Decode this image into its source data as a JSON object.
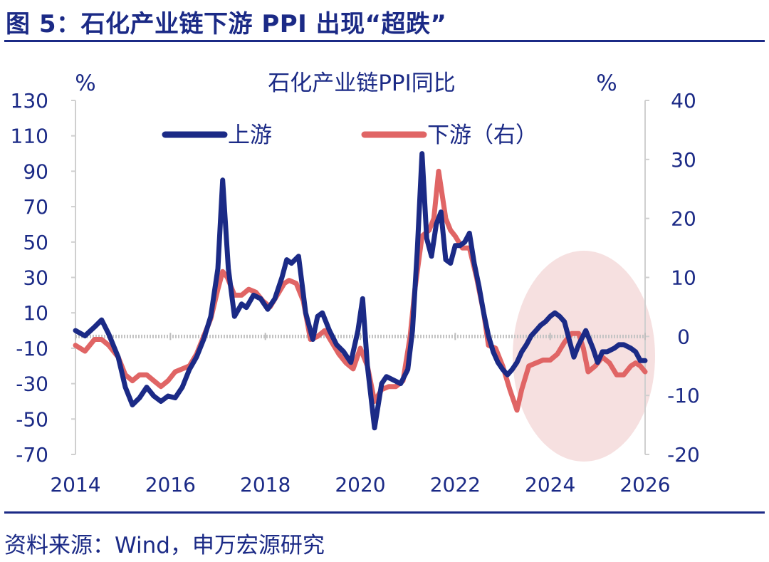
{
  "figure_title": "图 5：石化产业链下游 PPI 出现“超跌”",
  "source": "资料来源：Wind，申万宏源研究",
  "colors": {
    "navy": "#1b2a86",
    "red": "#e06565",
    "highlight": "#f3d5d5"
  },
  "chart_data": {
    "type": "line",
    "title": "石化产业链PPI同比",
    "ylabel_left": "%",
    "ylabel_right": "%",
    "x_ticks": [
      "2014",
      "2016",
      "2018",
      "2020",
      "2022",
      "2024",
      "2026"
    ],
    "xlim": [
      2014.0,
      2026.0
    ],
    "ylim_left": [
      -70,
      130
    ],
    "ylim_right": [
      -20,
      40
    ],
    "yticks_left": [
      "130",
      "110",
      "90",
      "70",
      "50",
      "30",
      "10",
      "-10",
      "-30",
      "-50",
      "-70"
    ],
    "yticks_right": [
      "40",
      "30",
      "20",
      "10",
      "0",
      "-10",
      "-20"
    ],
    "legend_location": "top",
    "series": [
      {
        "name": "上游",
        "axis": "left",
        "color": "#1b2a86",
        "x": [
          2014.0,
          2014.2,
          2014.4,
          2014.55,
          2014.7,
          2014.9,
          2015.05,
          2015.2,
          2015.35,
          2015.5,
          2015.65,
          2015.8,
          2015.95,
          2016.1,
          2016.25,
          2016.4,
          2016.55,
          2016.7,
          2016.85,
          2017.0,
          2017.1,
          2017.22,
          2017.35,
          2017.5,
          2017.6,
          2017.75,
          2017.9,
          2018.05,
          2018.2,
          2018.35,
          2018.45,
          2018.55,
          2018.7,
          2018.85,
          2019.0,
          2019.1,
          2019.2,
          2019.35,
          2019.5,
          2019.65,
          2019.8,
          2019.95,
          2020.05,
          2020.15,
          2020.3,
          2020.45,
          2020.55,
          2020.7,
          2020.85,
          2021.0,
          2021.1,
          2021.2,
          2021.3,
          2021.4,
          2021.5,
          2021.6,
          2021.7,
          2021.8,
          2021.9,
          2022.0,
          2022.1,
          2022.2,
          2022.3,
          2022.4,
          2022.5,
          2022.6,
          2022.7,
          2022.8,
          2022.9,
          2023.0,
          2023.1,
          2023.2,
          2023.3,
          2023.4,
          2023.5,
          2023.6,
          2023.7,
          2023.8,
          2023.9,
          2024.0,
          2024.1,
          2024.2,
          2024.3,
          2024.4,
          2024.5,
          2024.6,
          2024.75,
          2024.9,
          2025.0,
          2025.1,
          2025.2,
          2025.35,
          2025.45,
          2025.55,
          2025.7,
          2025.8,
          2025.9,
          2026.0
        ],
        "values": [
          0,
          -3,
          2,
          6,
          -2,
          -15,
          -32,
          -42,
          -38,
          -32,
          -37,
          -40,
          -37,
          -38,
          -32,
          -22,
          -15,
          -5,
          8,
          35,
          85,
          35,
          8,
          15,
          13,
          20,
          18,
          12,
          18,
          30,
          40,
          38,
          42,
          10,
          -5,
          8,
          10,
          0,
          -8,
          -12,
          -18,
          0,
          18,
          -20,
          -55,
          -30,
          -26,
          -28,
          -30,
          -22,
          0,
          45,
          100,
          52,
          42,
          60,
          67,
          40,
          38,
          48,
          48,
          50,
          55,
          38,
          25,
          10,
          -3,
          -12,
          -18,
          -22,
          -25,
          -22,
          -18,
          -12,
          -8,
          -3,
          0,
          3,
          5,
          8,
          10,
          8,
          5,
          -5,
          -15,
          -8,
          0,
          -10,
          -18,
          -12,
          -12,
          -10,
          -8,
          -8,
          -10,
          -12,
          -17,
          -17
        ]
      },
      {
        "name": "下游（右）",
        "axis": "right",
        "color": "#e06565",
        "x": [
          2014.0,
          2014.2,
          2014.4,
          2014.55,
          2014.7,
          2014.9,
          2015.05,
          2015.2,
          2015.35,
          2015.5,
          2015.65,
          2015.8,
          2015.95,
          2016.1,
          2016.25,
          2016.4,
          2016.55,
          2016.7,
          2016.85,
          2017.0,
          2017.1,
          2017.2,
          2017.35,
          2017.5,
          2017.65,
          2017.8,
          2017.95,
          2018.1,
          2018.25,
          2018.4,
          2018.5,
          2018.65,
          2018.8,
          2018.95,
          2019.1,
          2019.25,
          2019.4,
          2019.55,
          2019.7,
          2019.85,
          2020.0,
          2020.15,
          2020.3,
          2020.45,
          2020.6,
          2020.75,
          2020.9,
          2021.05,
          2021.15,
          2021.3,
          2021.45,
          2021.55,
          2021.65,
          2021.8,
          2021.9,
          2022.0,
          2022.15,
          2022.3,
          2022.45,
          2022.6,
          2022.7,
          2022.85,
          2023.0,
          2023.15,
          2023.3,
          2023.4,
          2023.55,
          2023.7,
          2023.85,
          2024.0,
          2024.15,
          2024.3,
          2024.45,
          2024.6,
          2024.7,
          2024.8,
          2024.95,
          2025.1,
          2025.25,
          2025.4,
          2025.55,
          2025.7,
          2025.8,
          2025.9,
          2026.0
        ],
        "values": [
          -1.5,
          -2.5,
          -0.5,
          -0.5,
          -1.5,
          -3.5,
          -6.5,
          -7.5,
          -6.5,
          -6.5,
          -7.5,
          -8.5,
          -7.5,
          -6,
          -5.5,
          -5,
          -3,
          0,
          3,
          8,
          11,
          10,
          7,
          7,
          8,
          7.5,
          6,
          5,
          7,
          9,
          9.5,
          9,
          6,
          -0.5,
          0,
          1,
          -1,
          -3,
          -4.5,
          -5.5,
          -2,
          -5,
          -11,
          -9,
          -8.5,
          -8.5,
          -7.5,
          0,
          8,
          17,
          18,
          20,
          28,
          20,
          18,
          17,
          15,
          15,
          10,
          4,
          -1.5,
          -2,
          -5,
          -9,
          -12.5,
          -9,
          -5,
          -4.5,
          -4,
          -4,
          -3,
          -1,
          0.5,
          0.5,
          -2,
          -6,
          -5,
          -3.5,
          -4.5,
          -6.5,
          -6.5,
          -5,
          -4.5,
          -5,
          -6
        ]
      }
    ]
  }
}
